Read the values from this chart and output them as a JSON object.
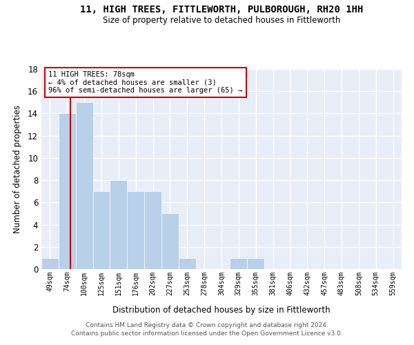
{
  "title": "11, HIGH TREES, FITTLEWORTH, PULBOROUGH, RH20 1HH",
  "subtitle": "Size of property relative to detached houses in Fittleworth",
  "xlabel": "Distribution of detached houses by size in Fittleworth",
  "ylabel": "Number of detached properties",
  "bar_labels": [
    "49sqm",
    "74sqm",
    "100sqm",
    "125sqm",
    "151sqm",
    "176sqm",
    "202sqm",
    "227sqm",
    "253sqm",
    "278sqm",
    "304sqm",
    "329sqm",
    "355sqm",
    "381sqm",
    "406sqm",
    "432sqm",
    "457sqm",
    "483sqm",
    "508sqm",
    "534sqm",
    "559sqm"
  ],
  "bar_values": [
    1,
    14,
    15,
    7,
    8,
    7,
    7,
    5,
    1,
    0,
    0,
    1,
    1,
    0,
    0,
    0,
    0,
    0,
    0,
    0,
    0
  ],
  "bar_color": "#b8d0e8",
  "vline_color": "#cc0000",
  "vline_x": 1.18,
  "property_label": "11 HIGH TREES: 78sqm",
  "annotation_line1": "← 4% of detached houses are smaller (3)",
  "annotation_line2": "96% of semi-detached houses are larger (65) →",
  "ylim": [
    0,
    18
  ],
  "yticks": [
    0,
    2,
    4,
    6,
    8,
    10,
    12,
    14,
    16,
    18
  ],
  "bg_color": "#e8eef8",
  "grid_color": "#ffffff",
  "footer1": "Contains HM Land Registry data © Crown copyright and database right 2024.",
  "footer2": "Contains public sector information licensed under the Open Government Licence v3.0."
}
